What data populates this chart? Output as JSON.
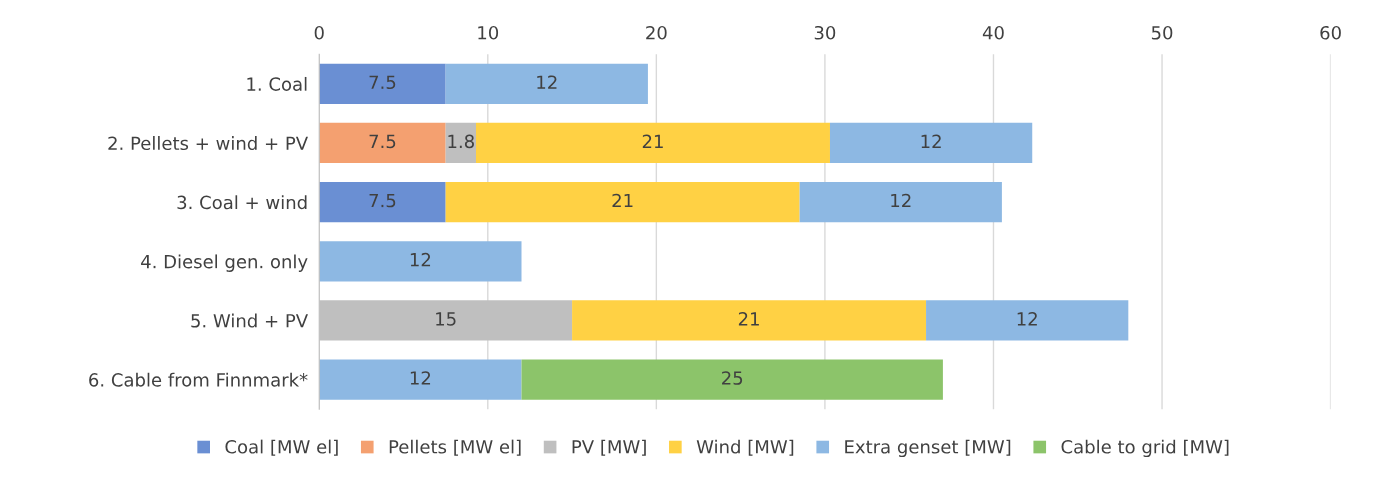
{
  "chart_data": {
    "type": "bar",
    "orientation": "horizontal",
    "stacked": true,
    "categories": [
      "1. Coal",
      "2. Pellets + wind + PV",
      "3. Coal + wind",
      "4. Diesel gen. only",
      "5. Wind + PV",
      "6. Cable from Finnmark*"
    ],
    "series": [
      {
        "name": "Coal [MW el]",
        "color": "#6a8fd3",
        "values": [
          7.5,
          null,
          7.5,
          null,
          null,
          null
        ]
      },
      {
        "name": "Pellets [MW el]",
        "color": "#f4a070",
        "values": [
          null,
          7.5,
          null,
          null,
          null,
          null
        ]
      },
      {
        "name": "PV [MW]",
        "color": "#bfbfbf",
        "values": [
          null,
          1.8,
          null,
          null,
          15,
          null
        ]
      },
      {
        "name": "Wind [MW]",
        "color": "#ffd144",
        "values": [
          null,
          21,
          21,
          null,
          21,
          null
        ]
      },
      {
        "name": "Extra genset [MW]",
        "color": "#8db8e3",
        "values": [
          12,
          12,
          12,
          12,
          12,
          12
        ]
      },
      {
        "name": "Cable to grid [MW]",
        "color": "#8cc46a",
        "values": [
          null,
          null,
          null,
          null,
          null,
          25
        ]
      }
    ],
    "xlim": [
      0,
      60
    ],
    "xticks": [
      0,
      10,
      20,
      30,
      40,
      50,
      60
    ],
    "grid": "x",
    "legend": "bottom",
    "data_labels": true
  }
}
